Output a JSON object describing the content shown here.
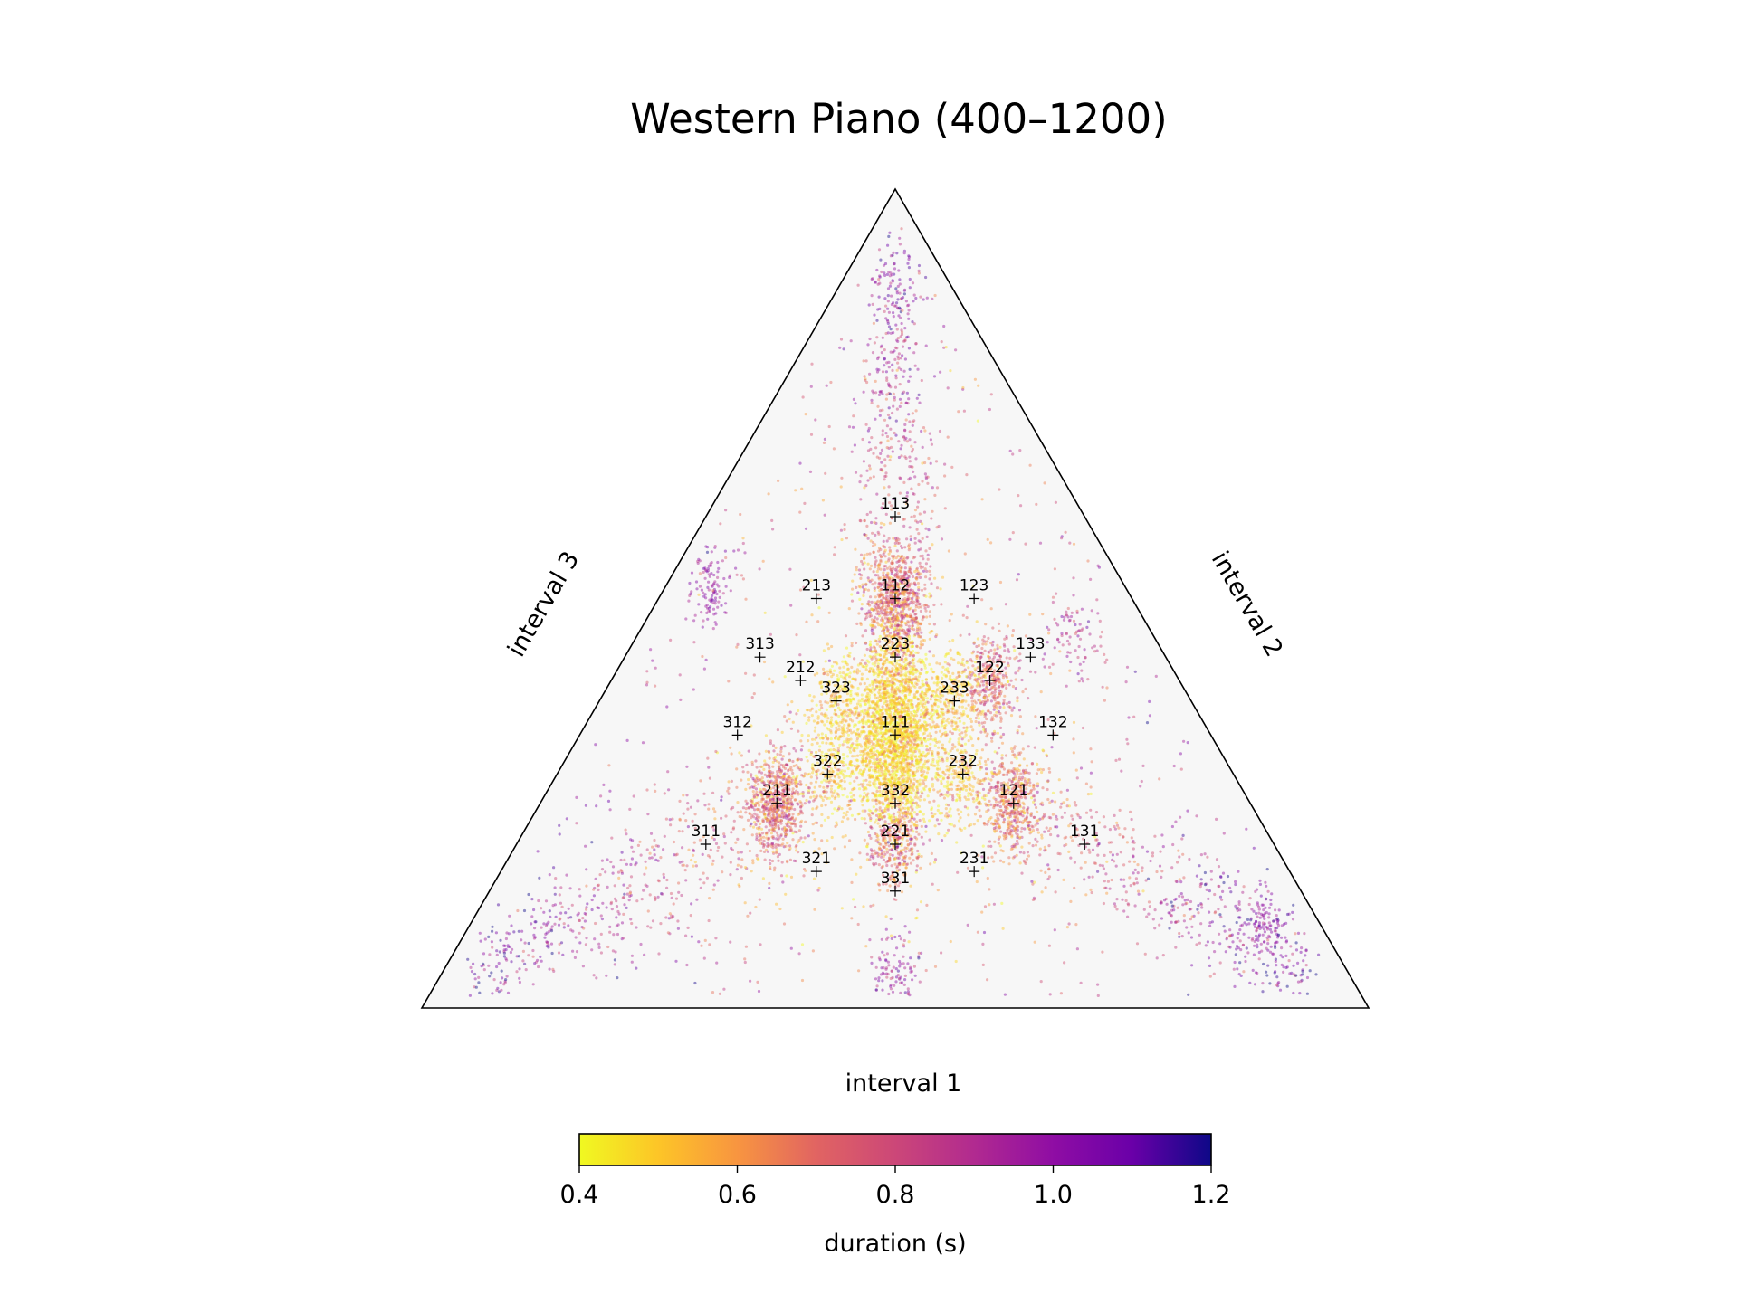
{
  "chart_data": {
    "type": "scatter",
    "title": "Western Piano (400–1200)",
    "axes": {
      "bottom": "interval 1",
      "right": "interval 2",
      "left": "interval 3"
    },
    "ratio_markers": [
      {
        "label": "111",
        "x": 0.3333,
        "y": 0.3333
      },
      {
        "label": "112",
        "x": 0.25,
        "y": 0.25
      },
      {
        "label": "121",
        "x": 0.25,
        "y": 0.5
      },
      {
        "label": "211",
        "x": 0.5,
        "y": 0.25
      },
      {
        "label": "113",
        "x": 0.2,
        "y": 0.2
      },
      {
        "label": "131",
        "x": 0.2,
        "y": 0.6
      },
      {
        "label": "311",
        "x": 0.6,
        "y": 0.2
      },
      {
        "label": "122",
        "x": 0.2,
        "y": 0.4
      },
      {
        "label": "212",
        "x": 0.4,
        "y": 0.2
      },
      {
        "label": "221",
        "x": 0.4,
        "y": 0.4
      },
      {
        "label": "123",
        "x": 0.1667,
        "y": 0.3333
      },
      {
        "label": "132",
        "x": 0.1667,
        "y": 0.5
      },
      {
        "label": "213",
        "x": 0.3333,
        "y": 0.1667
      },
      {
        "label": "231",
        "x": 0.3333,
        "y": 0.5
      },
      {
        "label": "312",
        "x": 0.5,
        "y": 0.1667
      },
      {
        "label": "321",
        "x": 0.5,
        "y": 0.3333
      },
      {
        "label": "133",
        "x": 0.1429,
        "y": 0.4286
      },
      {
        "label": "313",
        "x": 0.4286,
        "y": 0.1429
      },
      {
        "label": "331",
        "x": 0.4286,
        "y": 0.4286
      },
      {
        "label": "223",
        "x": 0.2857,
        "y": 0.2857
      },
      {
        "label": "232",
        "x": 0.2857,
        "y": 0.4286
      },
      {
        "label": "322",
        "x": 0.4286,
        "y": 0.2857
      },
      {
        "label": "233",
        "x": 0.25,
        "y": 0.375
      },
      {
        "label": "323",
        "x": 0.375,
        "y": 0.25
      },
      {
        "label": "332",
        "x": 0.375,
        "y": 0.375
      }
    ],
    "clusters": [
      {
        "near": "111",
        "x": 0.3333,
        "y": 0.3333,
        "spread": 0.035,
        "n": 1800,
        "duration_mean": 0.47,
        "duration_sd": 0.08
      },
      {
        "near": "112",
        "x": 0.25,
        "y": 0.25,
        "spread": 0.022,
        "n": 700,
        "duration_mean": 0.72,
        "duration_sd": 0.12
      },
      {
        "near": "211",
        "x": 0.5,
        "y": 0.25,
        "spread": 0.022,
        "n": 650,
        "duration_mean": 0.72,
        "duration_sd": 0.12
      },
      {
        "near": "121",
        "x": 0.25,
        "y": 0.5,
        "spread": 0.02,
        "n": 450,
        "duration_mean": 0.7,
        "duration_sd": 0.12
      },
      {
        "near": "122",
        "x": 0.2,
        "y": 0.4,
        "spread": 0.02,
        "n": 350,
        "duration_mean": 0.72,
        "duration_sd": 0.12
      },
      {
        "near": "221",
        "x": 0.4,
        "y": 0.4,
        "spread": 0.02,
        "n": 330,
        "duration_mean": 0.72,
        "duration_sd": 0.12
      },
      {
        "near": "223",
        "x": 0.29,
        "y": 0.29,
        "spread": 0.02,
        "n": 250,
        "duration_mean": 0.5,
        "duration_sd": 0.08
      },
      {
        "near": "322",
        "x": 0.42,
        "y": 0.29,
        "spread": 0.02,
        "n": 220,
        "duration_mean": 0.5,
        "duration_sd": 0.08
      },
      {
        "near": "233",
        "x": 0.25,
        "y": 0.37,
        "spread": 0.02,
        "n": 220,
        "duration_mean": 0.5,
        "duration_sd": 0.08
      },
      {
        "near": "332",
        "x": 0.37,
        "y": 0.37,
        "spread": 0.02,
        "n": 200,
        "duration_mean": 0.5,
        "duration_sd": 0.08
      },
      {
        "near": "323",
        "x": 0.37,
        "y": 0.25,
        "spread": 0.02,
        "n": 200,
        "duration_mean": 0.5,
        "duration_sd": 0.08
      },
      {
        "near": "232",
        "x": 0.29,
        "y": 0.43,
        "spread": 0.02,
        "n": 200,
        "duration_mean": 0.5,
        "duration_sd": 0.08
      },
      {
        "near": "131",
        "x": 0.06,
        "y": 0.84,
        "spread": 0.015,
        "n": 110,
        "duration_mean": 1.0,
        "duration_sd": 0.05
      },
      {
        "near": "313",
        "x": 0.44,
        "y": 0.05,
        "spread": 0.016,
        "n": 110,
        "duration_mean": 0.98,
        "duration_sd": 0.06
      },
      {
        "near": "331",
        "x": 0.48,
        "y": 0.48,
        "spread": 0.018,
        "n": 110,
        "duration_mean": 0.95,
        "duration_sd": 0.08
      },
      {
        "near": "133",
        "x": 0.09,
        "y": 0.46,
        "spread": 0.02,
        "n": 80,
        "duration_mean": 0.9,
        "duration_sd": 0.1
      }
    ],
    "arms": [
      {
        "from": [
          0.3333,
          0.3333
        ],
        "to": [
          0.04,
          0.92
        ],
        "n": 700
      },
      {
        "from": [
          0.3333,
          0.3333
        ],
        "to": [
          0.92,
          0.04
        ],
        "n": 700
      },
      {
        "from": [
          0.3333,
          0.3333
        ],
        "to": [
          0.04,
          0.04
        ],
        "n": 700
      }
    ],
    "colorbar": {
      "label": "duration (s)",
      "min": 0.4,
      "max": 1.2,
      "ticks": [
        "0.4",
        "0.6",
        "0.8",
        "1.0",
        "1.2"
      ],
      "colormap": "plasma"
    },
    "background_color": "#f7f7f7",
    "marker_color": "#000000"
  }
}
